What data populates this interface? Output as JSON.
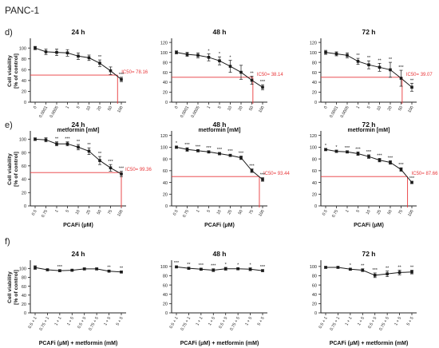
{
  "figure": {
    "title": "PANC-1",
    "row_labels": [
      "d)",
      "e)",
      "f)"
    ]
  },
  "colors": {
    "series": "#1a1a1a",
    "ic50": "#e8373a",
    "axis": "#222222"
  },
  "chart_data": [
    {
      "id": "d1",
      "type": "line",
      "title": "24 h",
      "ylabel": "Cell viability\n[% of control]",
      "xlabel": "metformin [mM]",
      "categories": [
        "0",
        "0.0001",
        "0.0005",
        "1",
        "5",
        "10",
        "20",
        "50",
        "100"
      ],
      "values": [
        100,
        93,
        92,
        91,
        85,
        82,
        72,
        58,
        42
      ],
      "errors": [
        3,
        5,
        6,
        6,
        6,
        5,
        6,
        7,
        4
      ],
      "sig": [
        "",
        "",
        "",
        "",
        "",
        "",
        "**",
        "",
        "***"
      ],
      "yticks": [
        0,
        20,
        40,
        60,
        80,
        100
      ],
      "ylim": [
        0,
        115
      ],
      "ic50": {
        "label": "IC50= 78.16",
        "y": 50,
        "x_index": 7.65
      }
    },
    {
      "id": "d2",
      "type": "line",
      "title": "48 h",
      "ylabel": "",
      "xlabel": "metformin [mM]",
      "categories": [
        "0",
        "0.0001",
        "0.0005",
        "1",
        "5",
        "10",
        "20",
        "50",
        "100"
      ],
      "values": [
        100,
        96,
        94,
        90,
        83,
        72,
        60,
        44,
        30
      ],
      "errors": [
        3,
        4,
        5,
        7,
        8,
        12,
        14,
        8,
        5
      ],
      "sig": [
        "",
        "",
        "",
        "*",
        "*",
        "*",
        "",
        "**",
        "***"
      ],
      "yticks": [
        0,
        20,
        40,
        60,
        80,
        100,
        120
      ],
      "ylim": [
        0,
        125
      ],
      "ic50": {
        "label": "IC50= 38.14",
        "y": 50,
        "x_index": 7.1
      }
    },
    {
      "id": "d3",
      "type": "line",
      "title": "72 h",
      "ylabel": "",
      "xlabel": "metformin [mM]",
      "categories": [
        "0",
        "0.0001",
        "0.0005",
        "1",
        "5",
        "10",
        "20",
        "50",
        "100"
      ],
      "values": [
        100,
        97,
        94,
        82,
        75,
        70,
        65,
        48,
        30
      ],
      "errors": [
        4,
        4,
        5,
        6,
        8,
        8,
        15,
        16,
        8
      ],
      "sig": [
        "",
        "",
        "",
        "**",
        "**",
        "**",
        "**",
        "***",
        "**"
      ],
      "yticks": [
        0,
        20,
        40,
        60,
        80,
        100,
        120
      ],
      "ylim": [
        0,
        125
      ],
      "ic50": {
        "label": "IC50= 39.07",
        "y": 50,
        "x_index": 7.1
      }
    },
    {
      "id": "e1",
      "type": "line",
      "title": "24 h",
      "ylabel": "Cell viability\n[% of control]",
      "xlabel": "PCAFi (μM)",
      "categories": [
        "0.5",
        "0.75",
        "1",
        "5",
        "10",
        "25",
        "50",
        "75",
        "100"
      ],
      "values": [
        100,
        99,
        93,
        93,
        88,
        82,
        68,
        57,
        48
      ],
      "errors": [
        2,
        3,
        3,
        3,
        4,
        5,
        6,
        5,
        4
      ],
      "sig": [
        "",
        "",
        "**",
        "***",
        "**",
        "**",
        "**",
        "***",
        "***"
      ],
      "yticks": [
        0,
        20,
        40,
        60,
        80,
        100
      ],
      "ylim": [
        0,
        110
      ],
      "ic50": {
        "label": "IC50= 99.36",
        "y": 50,
        "x_index": 8.0
      }
    },
    {
      "id": "e2",
      "type": "line",
      "title": "48 h",
      "ylabel": "",
      "xlabel": "PCAFi (μM)",
      "categories": [
        "0.5",
        "0.75",
        "1",
        "5",
        "10",
        "25",
        "50",
        "75",
        "100"
      ],
      "values": [
        100,
        96,
        94,
        92,
        89,
        86,
        82,
        60,
        45
      ],
      "errors": [
        2,
        3,
        2,
        2,
        2,
        2,
        3,
        3,
        3
      ],
      "sig": [
        "*",
        "***",
        "***",
        "***",
        "***",
        "***",
        "***",
        "***",
        "***"
      ],
      "yticks": [
        0,
        20,
        40,
        60,
        80,
        100,
        120
      ],
      "ylim": [
        0,
        125
      ],
      "ic50": {
        "label": "IC50= 93.44",
        "y": 50,
        "x_index": 7.7
      }
    },
    {
      "id": "e3",
      "type": "line",
      "title": "72 h",
      "ylabel": "",
      "xlabel": "PCAFi (μM)",
      "categories": [
        "0.5",
        "0.75",
        "1",
        "5",
        "10",
        "25",
        "50",
        "75",
        "100"
      ],
      "values": [
        96,
        93,
        92,
        89,
        84,
        78,
        74,
        62,
        40
      ],
      "errors": [
        2,
        2,
        2,
        3,
        3,
        3,
        3,
        3,
        2
      ],
      "sig": [
        "*",
        "*",
        "***",
        "***",
        "***",
        "***",
        "***",
        "***",
        "***"
      ],
      "yticks": [
        0,
        20,
        40,
        60,
        80,
        100,
        120
      ],
      "ylim": [
        0,
        125
      ],
      "ic50": {
        "label": "IC50= 87.66",
        "y": 50,
        "x_index": 7.6
      }
    },
    {
      "id": "f1",
      "type": "line",
      "title": "24 h",
      "ylabel": "Cell viability\n[% of control]",
      "xlabel": "PCAFi (μM) + metformin (mM)",
      "categories": [
        "0.5 + 1",
        "0.75 + 1",
        "1 + 1",
        "1 + 5",
        "0.5 + 5",
        "0.75 + 5",
        "1 + 5",
        "5 + 5"
      ],
      "values": [
        102,
        97,
        95,
        96,
        99,
        99,
        94,
        92
      ],
      "errors": [
        4,
        2,
        2,
        2,
        2,
        2,
        2,
        2
      ],
      "sig": [
        "",
        "",
        "***",
        "",
        "",
        "",
        "**",
        "**"
      ],
      "yticks": [
        0,
        20,
        40,
        60,
        80,
        100
      ],
      "ylim": [
        0,
        115
      ],
      "ic50": null
    },
    {
      "id": "f2",
      "type": "line",
      "title": "48 h",
      "ylabel": "",
      "xlabel": "PCAFi (μM) + metformin (mM)",
      "categories": [
        "0.5 + 1",
        "0.75 + 1",
        "1 + 1",
        "1 + 5",
        "0.5 + 5",
        "0.75 + 5",
        "1 + 5",
        "5 + 5"
      ],
      "values": [
        99,
        96,
        94,
        92,
        95,
        95,
        94,
        91
      ],
      "errors": [
        2,
        2,
        2,
        3,
        3,
        2,
        3,
        2
      ],
      "sig": [
        "***",
        "**",
        "***",
        "***",
        "*",
        "*",
        "*",
        "***"
      ],
      "yticks": [
        0,
        20,
        40,
        60,
        80,
        100
      ],
      "ylim": [
        0,
        110
      ],
      "ic50": null
    },
    {
      "id": "f3",
      "type": "line",
      "title": "72 h",
      "ylabel": "",
      "xlabel": "PCAFi (μM) + metformin (mM)",
      "categories": [
        "0.5 + 1",
        "0.75 + 1",
        "1 + 1",
        "1 + 5",
        "0.5 + 5",
        "0.75 + 5",
        "1 + 5",
        "5 + 5"
      ],
      "values": [
        98,
        98,
        94,
        92,
        81,
        84,
        87,
        88
      ],
      "errors": [
        2,
        2,
        2,
        3,
        5,
        6,
        5,
        4
      ],
      "sig": [
        "",
        "",
        "*",
        "**",
        "***",
        "**",
        "**",
        "**"
      ],
      "yticks": [
        0,
        20,
        40,
        60,
        80,
        100
      ],
      "ylim": [
        0,
        110
      ],
      "ic50": null
    }
  ]
}
